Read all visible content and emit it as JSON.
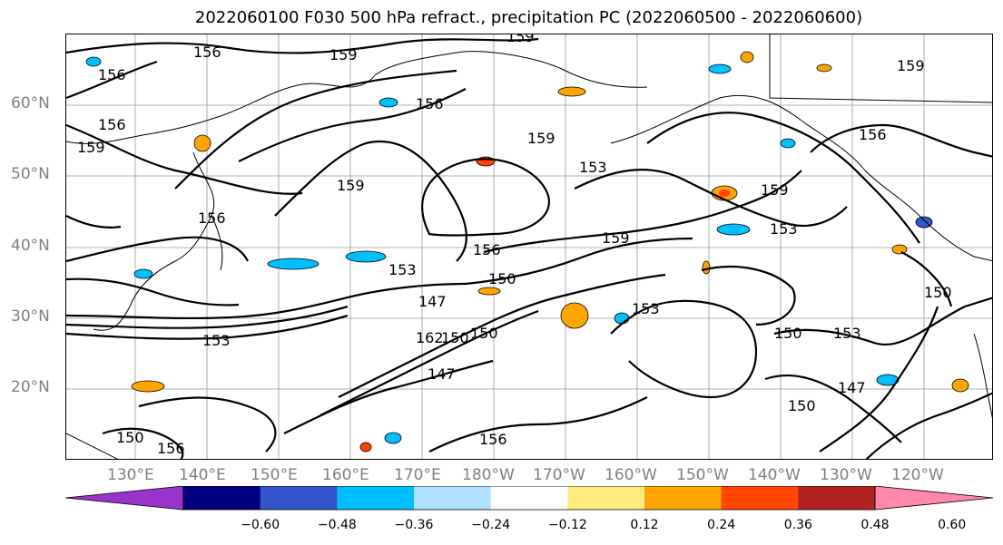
{
  "title": "2022060100 F030 500 hPa refract., precipitation PC (2022060500 - 2022060600)",
  "lat_labels": [
    "60°N",
    "50°N",
    "40°N",
    "30°N",
    "20°N"
  ],
  "lon_labels": [
    "130°E",
    "140°E",
    "150°E",
    "160°E",
    "170°E",
    "180°W",
    "170°W",
    "160°W",
    "150°W",
    "140°W",
    "130°W",
    "120°W"
  ],
  "contour_labels": [
    "156",
    "159",
    "156",
    "159",
    "156",
    "156",
    "159",
    "153",
    "159",
    "156",
    "153",
    "159",
    "156",
    "153",
    "150",
    "147",
    "150",
    "153",
    "162",
    "147",
    "150",
    "156",
    "159",
    "153",
    "150",
    "153",
    "147",
    "150",
    "150",
    "156",
    "159",
    "150",
    "156",
    "159"
  ],
  "colorbar": {
    "colors": [
      "#9933cc",
      "#000080",
      "#3355cc",
      "#00bfff",
      "#b0e0ff",
      "#ffffff",
      "#ffeb80",
      "#ffa500",
      "#ff4500",
      "#b22222",
      "#ff88aa"
    ],
    "tick_labels": [
      "−0.60",
      "−0.48",
      "−0.36",
      "−0.24",
      "−0.12",
      "0.12",
      "0.24",
      "0.36",
      "0.48",
      "0.60"
    ]
  },
  "icons": [
    "map-background",
    "coastline",
    "contour-line",
    "precipitation-patch"
  ]
}
